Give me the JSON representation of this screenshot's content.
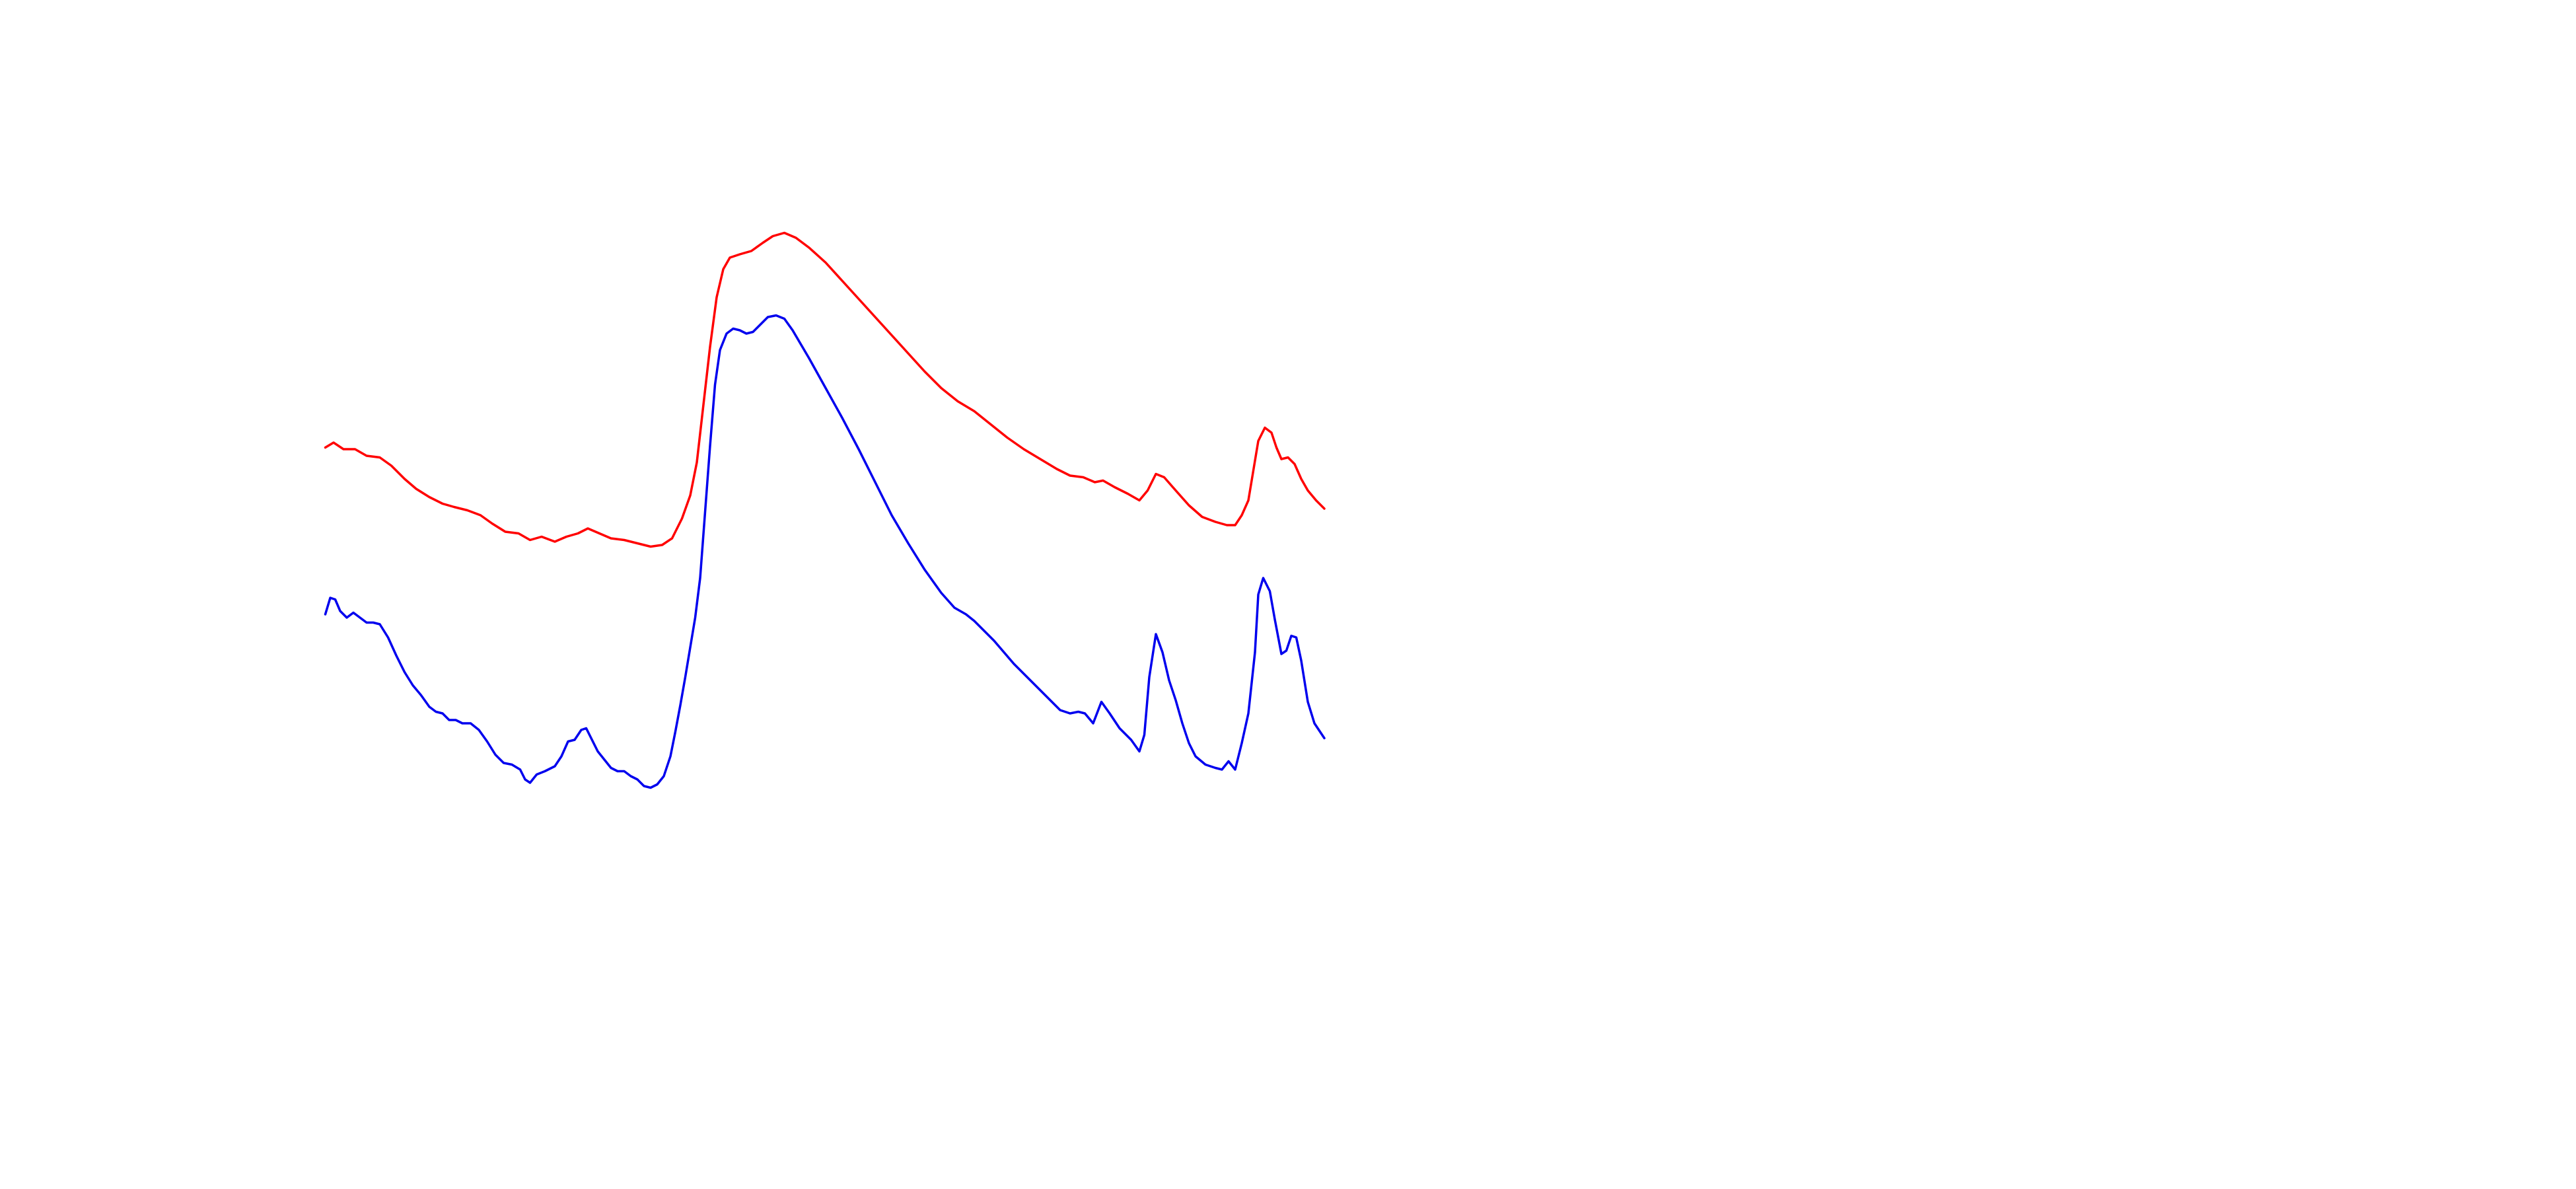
{
  "chart_data": {
    "type": "line",
    "xlim": [
      0,
      1560
    ],
    "ylim": [
      0,
      720
    ],
    "line_width": 3.5,
    "series": [
      {
        "color": "#ff0000",
        "x": [
          197,
          202,
          208,
          215,
          222,
          230,
          237,
          245,
          252,
          260,
          268,
          275,
          283,
          291,
          298,
          306,
          314,
          321,
          328,
          336,
          343,
          350,
          356,
          363,
          370,
          378,
          386,
          394,
          401,
          407,
          413,
          418,
          422,
          426,
          430,
          434,
          438,
          442,
          448,
          455,
          462,
          468,
          475,
          482,
          490,
          500,
          510,
          520,
          530,
          540,
          550,
          560,
          570,
          580,
          590,
          600,
          610,
          620,
          630,
          640,
          648,
          656,
          663,
          668,
          675,
          683,
          690,
          695,
          700,
          705,
          712,
          720,
          728,
          736,
          743,
          748,
          752,
          756,
          759,
          762,
          766,
          770,
          773,
          776,
          780,
          784,
          788,
          792,
          797,
          802
        ],
        "values": [
          449,
          452,
          448,
          448,
          444,
          443,
          438,
          430,
          424,
          419,
          415,
          413,
          411,
          408,
          403,
          398,
          397,
          393,
          395,
          392,
          395,
          397,
          400,
          397,
          394,
          393,
          391,
          389,
          390,
          394,
          406,
          420,
          440,
          475,
          510,
          540,
          557,
          564,
          566,
          568,
          573,
          577,
          579,
          576,
          570,
          561,
          550,
          539,
          528,
          517,
          506,
          495,
          485,
          477,
          471,
          463,
          455,
          448,
          442,
          436,
          432,
          431,
          428,
          429,
          425,
          421,
          417,
          423,
          433,
          431,
          423,
          414,
          407,
          404,
          402,
          402,
          408,
          417,
          435,
          453,
          461,
          458,
          449,
          442,
          443,
          439,
          430,
          423,
          417,
          412
        ]
      },
      {
        "color": "#0000ee",
        "x": [
          197,
          200,
          203,
          206,
          210,
          214,
          218,
          222,
          226,
          230,
          235,
          240,
          245,
          250,
          255,
          260,
          264,
          268,
          272,
          276,
          280,
          285,
          290,
          295,
          300,
          305,
          310,
          315,
          318,
          321,
          325,
          330,
          336,
          340,
          344,
          348,
          352,
          355,
          358,
          362,
          366,
          370,
          374,
          378,
          382,
          386,
          390,
          394,
          398,
          402,
          406,
          409,
          412,
          415,
          418,
          421,
          424,
          427,
          430,
          433,
          436,
          440,
          444,
          448,
          452,
          456,
          460,
          465,
          470,
          475,
          480,
          490,
          500,
          510,
          520,
          530,
          540,
          550,
          560,
          570,
          578,
          585,
          590,
          596,
          602,
          608,
          614,
          620,
          626,
          632,
          638,
          642,
          648,
          653,
          657,
          662,
          667,
          672,
          678,
          685,
          690,
          693,
          696,
          700,
          704,
          708,
          712,
          716,
          720,
          724,
          730,
          736,
          740,
          744,
          748,
          752,
          756,
          760,
          762,
          765,
          769,
          772,
          776,
          779,
          782,
          785,
          788,
          792,
          796,
          802
        ],
        "values": [
          348,
          358,
          357,
          350,
          346,
          349,
          346,
          343,
          343,
          342,
          334,
          323,
          313,
          305,
          299,
          292,
          289,
          288,
          284,
          284,
          282,
          282,
          278,
          271,
          263,
          258,
          257,
          254,
          248,
          246,
          251,
          253,
          256,
          262,
          271,
          272,
          278,
          279,
          273,
          265,
          260,
          255,
          253,
          253,
          250,
          248,
          244,
          243,
          245,
          250,
          262,
          277,
          293,
          310,
          328,
          346,
          370,
          410,
          450,
          487,
          508,
          518,
          521,
          520,
          518,
          519,
          523,
          528,
          529,
          527,
          520,
          503,
          485,
          467,
          448,
          428,
          408,
          391,
          375,
          361,
          352,
          348,
          344,
          338,
          332,
          325,
          318,
          312,
          306,
          300,
          294,
          290,
          288,
          289,
          288,
          282,
          295,
          288,
          279,
          272,
          265,
          275,
          310,
          336,
          325,
          308,
          296,
          282,
          270,
          262,
          257,
          255,
          254,
          259,
          254,
          270,
          288,
          325,
          360,
          370,
          362,
          345,
          324,
          326,
          335,
          334,
          320,
          295,
          282,
          273
        ]
      }
    ]
  }
}
